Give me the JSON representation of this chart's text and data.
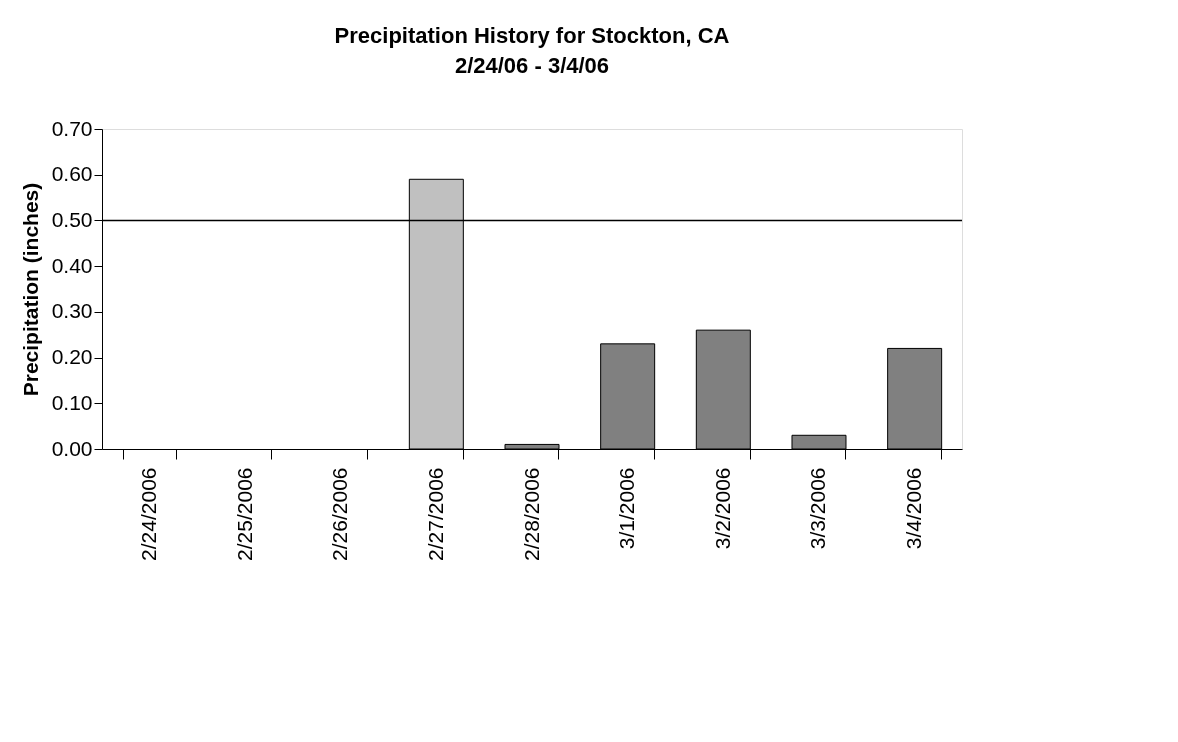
{
  "chart_data": {
    "type": "bar",
    "title": "Precipitation History for Stockton, CA",
    "subtitle": "2/24/06 - 3/4/06",
    "ylabel": "Precipitation (inches)",
    "categories": [
      "2/24/2006",
      "2/25/2006",
      "2/26/2006",
      "2/27/2006",
      "2/28/2006",
      "3/1/2006",
      "3/2/2006",
      "3/3/2006",
      "3/4/2006"
    ],
    "values": [
      0,
      0,
      0,
      0.59,
      0.01,
      0.23,
      0.26,
      0.03,
      0.22
    ],
    "colors": [
      "#808080",
      "#808080",
      "#808080",
      "#c0c0c0",
      "#808080",
      "#808080",
      "#808080",
      "#808080",
      "#808080"
    ],
    "ylim": [
      0,
      0.7
    ],
    "yticks": [
      {
        "value": 0,
        "label": "0.00"
      },
      {
        "value": 0.1,
        "label": "0.10"
      },
      {
        "value": 0.2,
        "label": "0.20"
      },
      {
        "value": 0.3,
        "label": "0.30"
      },
      {
        "value": 0.4,
        "label": "0.40"
      },
      {
        "value": 0.5,
        "label": "0.50"
      },
      {
        "value": 0.6,
        "label": "0.60"
      },
      {
        "value": 0.7,
        "label": "0.70"
      }
    ],
    "ref_lines": [
      {
        "axis": "y",
        "value": 0.5,
        "color": "#000000"
      }
    ],
    "grid": false
  }
}
